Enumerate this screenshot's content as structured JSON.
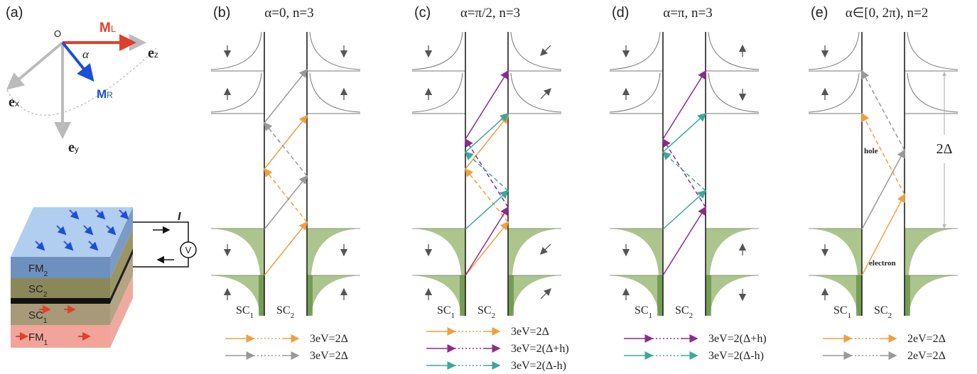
{
  "panel_a": {
    "label": "(a)",
    "origin": "O",
    "m_left": {
      "main": "M",
      "sub": "L"
    },
    "m_right": {
      "main": "M",
      "sub": "R"
    },
    "angle": "α",
    "ez": {
      "main": "e",
      "sub": "z"
    },
    "ex": {
      "main": "e",
      "sub": "x"
    },
    "ey": {
      "main": "e",
      "sub": "y"
    },
    "current": "I",
    "voltmeter": "V",
    "layers": [
      {
        "main": "FM",
        "sub": "2"
      },
      {
        "main": "SC",
        "sub": "2"
      },
      {
        "main": "SC",
        "sub": "1"
      },
      {
        "main": "FM",
        "sub": "1"
      }
    ]
  },
  "panels": [
    {
      "label": "(b)",
      "title": "α=0, n=3",
      "sc_left": {
        "main": "SC",
        "sub": "1"
      },
      "sc_right": {
        "main": "SC",
        "sub": "2"
      },
      "legend": [
        "3eV=2Δ",
        "3eV=2Δ"
      ]
    },
    {
      "label": "(c)",
      "title": "α=π/2, n=3",
      "sc_left": {
        "main": "SC",
        "sub": "1"
      },
      "sc_right": {
        "main": "SC",
        "sub": "2"
      },
      "legend": [
        "3eV=2Δ",
        "3eV=2(Δ+h)",
        "3eV=2(Δ-h)"
      ]
    },
    {
      "label": "(d)",
      "title": "α=π, n=3",
      "sc_left": {
        "main": "SC",
        "sub": "1"
      },
      "sc_right": {
        "main": "SC",
        "sub": "2"
      },
      "legend": [
        "3eV=2(Δ+h)",
        "3eV=2(Δ-h)"
      ]
    },
    {
      "label": "(e)",
      "title": "α∈[0, 2π), n=2",
      "sc_left": {
        "main": "SC",
        "sub": "1"
      },
      "sc_right": {
        "main": "SC",
        "sub": "2"
      },
      "legend": [
        "2eV=2Δ",
        "2eV=2Δ"
      ]
    }
  ],
  "annotations": {
    "hole": "hole",
    "electron": "electron",
    "gap": "2Δ"
  }
}
